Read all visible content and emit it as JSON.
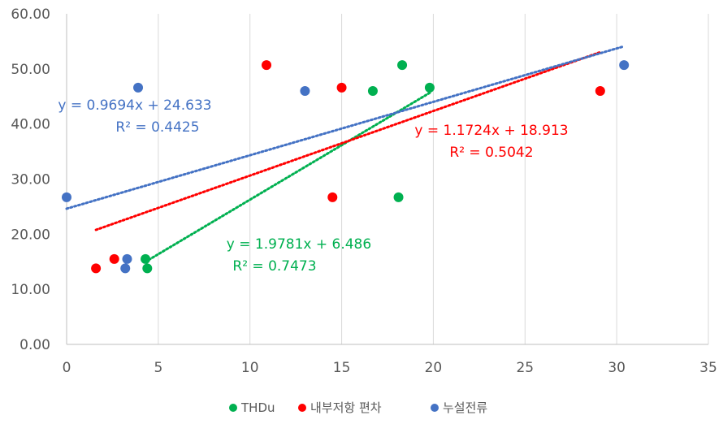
{
  "chart_data": {
    "type": "scatter",
    "title": "",
    "xlabel": "",
    "ylabel": "",
    "xlim": [
      0,
      35
    ],
    "ylim": [
      0,
      60
    ],
    "x_ticks": [
      0,
      5,
      10,
      15,
      20,
      25,
      30,
      35
    ],
    "y_ticks": [
      0,
      10,
      20,
      30,
      40,
      50,
      60
    ],
    "y_tick_labels": [
      "0.00",
      "10.00",
      "20.00",
      "30.00",
      "40.00",
      "50.00",
      "60.00"
    ],
    "x_tick_labels": [
      "0",
      "5",
      "10",
      "15",
      "20",
      "25",
      "30",
      "35"
    ],
    "grid": "vertical",
    "legend_position": "bottom",
    "series": [
      {
        "name": "THDu",
        "color": "#00B050",
        "points": [
          [
            4.3,
            15.5
          ],
          [
            4.4,
            13.8
          ],
          [
            16.7,
            46.0
          ],
          [
            18.1,
            26.7
          ],
          [
            18.3,
            50.7
          ],
          [
            19.8,
            46.6
          ]
        ],
        "trendline": {
          "slope": 1.9781,
          "intercept": 6.486,
          "x_range": [
            4.3,
            19.8
          ],
          "equation": "y = 1.9781x + 6.486",
          "r2": "R² = 0.7473"
        }
      },
      {
        "name": "내부저항 편차",
        "color": "#FF0000",
        "points": [
          [
            1.6,
            13.8
          ],
          [
            2.6,
            15.5
          ],
          [
            10.9,
            50.7
          ],
          [
            14.5,
            26.7
          ],
          [
            15.0,
            46.6
          ],
          [
            29.1,
            46.0
          ]
        ],
        "trendline": {
          "slope": 1.1724,
          "intercept": 18.913,
          "x_range": [
            1.6,
            29.1
          ],
          "equation": "y = 1.1724x + 18.913",
          "r2": "R² = 0.5042"
        }
      },
      {
        "name": "누설전류",
        "color": "#4472C4",
        "points": [
          [
            0.0,
            26.7
          ],
          [
            3.2,
            13.8
          ],
          [
            3.3,
            15.5
          ],
          [
            3.9,
            46.6
          ],
          [
            13.0,
            46.0
          ],
          [
            30.4,
            50.7
          ]
        ],
        "trendline": {
          "slope": 0.9694,
          "intercept": 24.633,
          "x_range": [
            0.0,
            30.4
          ],
          "equation": "y = 0.9694x + 24.633",
          "r2": "R² = 0.4425"
        }
      }
    ]
  }
}
